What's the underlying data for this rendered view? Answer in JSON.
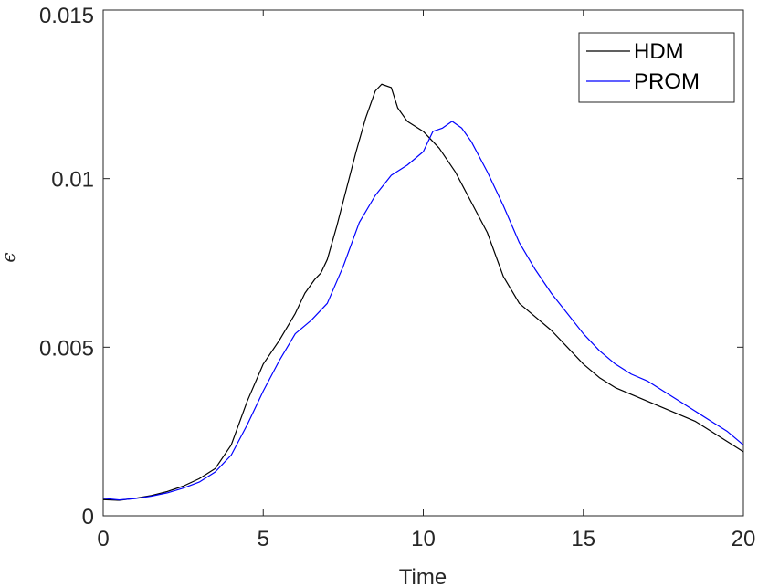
{
  "chart_data": {
    "type": "line",
    "title": "",
    "xlabel": "Time",
    "ylabel": "ϵ",
    "xlim": [
      0,
      20
    ],
    "ylim": [
      0,
      0.015
    ],
    "xticks": [
      0,
      5,
      10,
      15,
      20
    ],
    "xtick_labels": [
      "0",
      "5",
      "10",
      "15",
      "20"
    ],
    "yticks": [
      0,
      0.005,
      0.01,
      0.015
    ],
    "ytick_labels": [
      "0",
      "0.005",
      "0.01",
      "0.015"
    ],
    "grid": false,
    "legend_position": "top-right",
    "series": [
      {
        "name": "HDM",
        "color": "#000000",
        "x": [
          0,
          0.5,
          1,
          1.5,
          2,
          2.5,
          3,
          3.5,
          4,
          4.5,
          5,
          5.5,
          6,
          6.3,
          6.6,
          6.8,
          7,
          7.3,
          7.6,
          7.9,
          8.2,
          8.5,
          8.7,
          9,
          9.2,
          9.5,
          10,
          10.5,
          11,
          11.5,
          12,
          12.5,
          13,
          13.5,
          14,
          14.5,
          15,
          15.5,
          16,
          16.5,
          17,
          17.5,
          18,
          18.5,
          19,
          19.5,
          20
        ],
        "y": [
          0.00048,
          0.00046,
          0.00052,
          0.0006,
          0.00072,
          0.00088,
          0.0011,
          0.0014,
          0.0021,
          0.0034,
          0.0045,
          0.0052,
          0.006,
          0.0066,
          0.007,
          0.0072,
          0.0076,
          0.0086,
          0.0097,
          0.0108,
          0.0118,
          0.0126,
          0.0128,
          0.0127,
          0.0121,
          0.0117,
          0.0114,
          0.0109,
          0.0102,
          0.0093,
          0.0084,
          0.0071,
          0.0063,
          0.0059,
          0.0055,
          0.005,
          0.0045,
          0.0041,
          0.0038,
          0.0036,
          0.0034,
          0.0032,
          0.003,
          0.0028,
          0.0025,
          0.0022,
          0.0019
        ]
      },
      {
        "name": "PROM",
        "color": "#0000ff",
        "x": [
          0,
          0.5,
          1,
          1.5,
          2,
          2.5,
          3,
          3.5,
          4,
          4.5,
          5,
          5.5,
          6,
          6.5,
          7,
          7.5,
          8,
          8.5,
          9,
          9.5,
          10,
          10.3,
          10.6,
          10.9,
          11.2,
          11.5,
          12,
          12.5,
          13,
          13.5,
          14,
          14.5,
          15,
          15.5,
          16,
          16.5,
          17,
          17.5,
          18,
          18.5,
          19,
          19.5,
          20
        ],
        "y": [
          0.00052,
          0.00047,
          0.00051,
          0.00058,
          0.00068,
          0.00082,
          0.001,
          0.0013,
          0.0018,
          0.0027,
          0.0037,
          0.0046,
          0.0054,
          0.0058,
          0.0063,
          0.0074,
          0.0087,
          0.0095,
          0.0101,
          0.0104,
          0.0108,
          0.0114,
          0.0115,
          0.0117,
          0.0115,
          0.0111,
          0.0102,
          0.0092,
          0.0081,
          0.0073,
          0.0066,
          0.006,
          0.0054,
          0.0049,
          0.0045,
          0.0042,
          0.004,
          0.0037,
          0.0034,
          0.0031,
          0.0028,
          0.0025,
          0.0021
        ]
      }
    ]
  }
}
